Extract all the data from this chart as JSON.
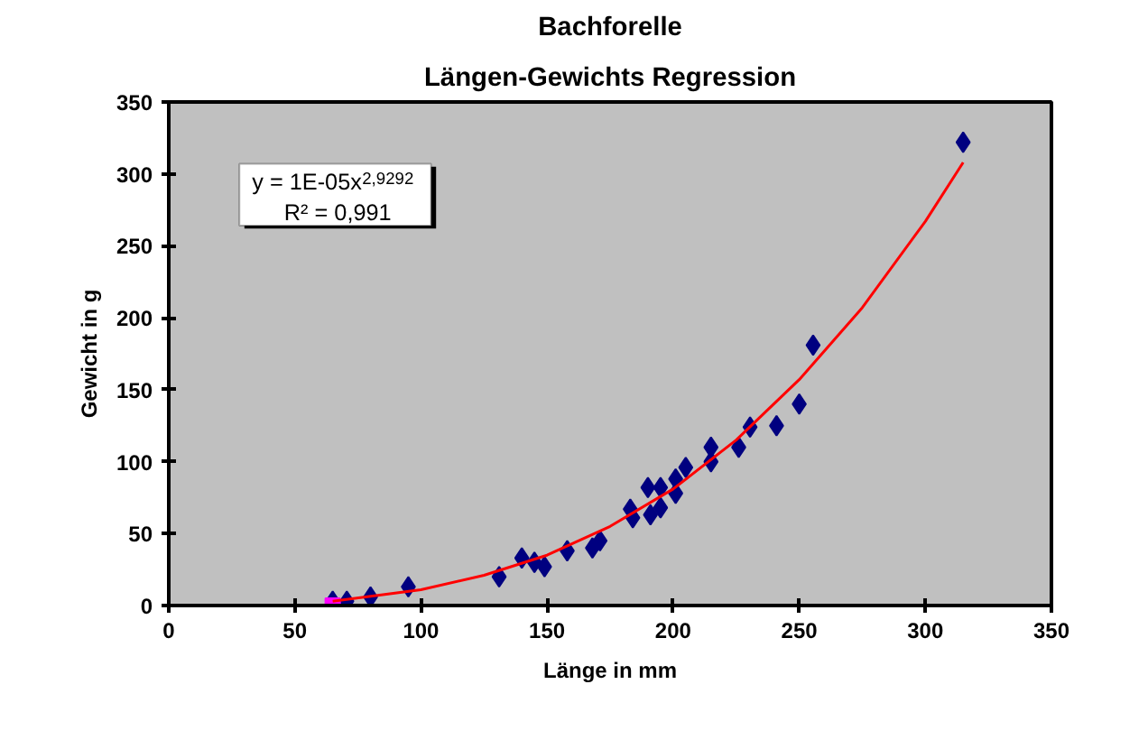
{
  "chart_data": {
    "type": "scatter",
    "title": "Bachforelle",
    "subtitle": "Längen-Gewichts Regression",
    "xlabel": "Länge in mm",
    "ylabel": "Gewicht in g",
    "xlim": [
      0,
      350
    ],
    "ylim": [
      0,
      350
    ],
    "xticks": [
      0,
      50,
      100,
      150,
      200,
      250,
      300,
      350
    ],
    "yticks": [
      0,
      50,
      100,
      150,
      200,
      250,
      300,
      350
    ],
    "grid": false,
    "marker": "diamond",
    "annotations": [
      "y = 1E-05x$^{2,9292}$",
      "R² = 0,991"
    ],
    "series": [
      {
        "color": "#000080",
        "x": [
          65,
          70.6,
          80,
          95,
          131,
          140,
          145,
          149,
          158,
          168,
          171,
          183,
          184,
          190,
          191,
          195,
          195,
          201,
          201,
          205,
          215,
          215,
          226,
          230.5,
          241,
          250,
          255.5,
          315
        ],
        "values": [
          3,
          3,
          6,
          13,
          20,
          33,
          30,
          27,
          38,
          40,
          45,
          67,
          61,
          82,
          63,
          82,
          68,
          88,
          78,
          96,
          110,
          100,
          110,
          124,
          125,
          140,
          181,
          322
        ]
      },
      {
        "type": "scatter",
        "marker": "square",
        "color": "#ff00ff",
        "x": [
          65
        ],
        "values": [
          0
        ]
      },
      {
        "type": "line",
        "marker": "none",
        "color": "#ff0000",
        "x": [
          65,
          100,
          125,
          150,
          175,
          200,
          225,
          250,
          275,
          300,
          315
        ],
        "values": [
          3,
          11,
          21,
          35,
          55,
          81,
          115,
          157,
          207,
          267,
          308
        ]
      }
    ]
  }
}
